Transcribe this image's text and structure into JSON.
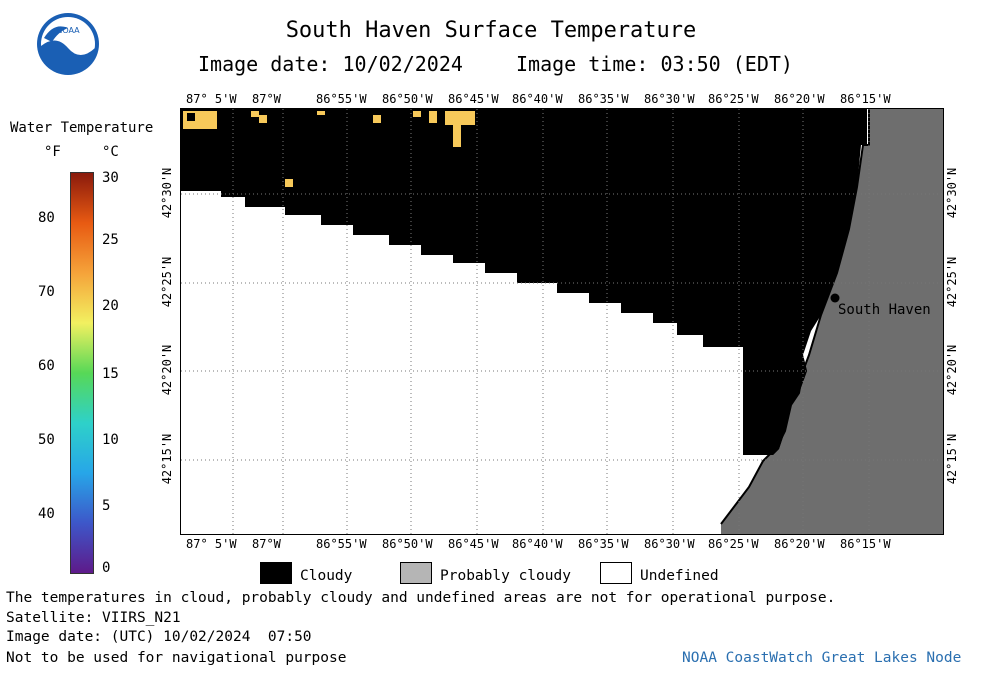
{
  "header": {
    "title": "South Haven Surface Temperature",
    "image_date": "Image date: 10/02/2024",
    "image_time": "Image time: 03:50 (EDT)",
    "logo_text": "NOAA"
  },
  "scale": {
    "title": "Water Temperature",
    "unit_f": "°F",
    "unit_c": "°C",
    "f_ticks": [
      "80",
      "70",
      "60",
      "50",
      "40"
    ],
    "c_ticks": [
      "30",
      "25",
      "20",
      "15",
      "10",
      "5",
      "0"
    ],
    "gradient": [
      "#5e1a8a",
      "#3d57c9",
      "#27a6e8",
      "#2ed1c9",
      "#57d857",
      "#f2f060",
      "#f5a33a",
      "#e85a12",
      "#8a1a0c"
    ]
  },
  "map": {
    "lon_labels": [
      "87° 5'W",
      "87°W",
      "86°55'W",
      "86°50'W",
      "86°45'W",
      "86°40'W",
      "86°35'W",
      "86°30'W",
      "86°25'W",
      "86°20'W",
      "86°15'W"
    ],
    "lat_labels": [
      "42°30'N",
      "42°25'N",
      "42°20'N",
      "42°15'N"
    ],
    "place_label": "South Haven",
    "colors": {
      "cloud": "#000000",
      "land": "#6e6e6e",
      "undefined": "#ffffff",
      "warm": "#f7c95a"
    }
  },
  "legend": {
    "cloudy": "Cloudy",
    "probably_cloudy": "Probably cloudy",
    "undefined": "Undefined"
  },
  "footer": {
    "disclaimer": "The temperatures in cloud, probably cloudy and undefined areas are not for operational purpose.",
    "satellite": "Satellite: VIIRS_N21",
    "utc_date": "Image date: (UTC) 10/02/2024  07:50",
    "nav_warning": "Not to be used for navigational purpose",
    "credit": "NOAA CoastWatch Great Lakes Node"
  }
}
